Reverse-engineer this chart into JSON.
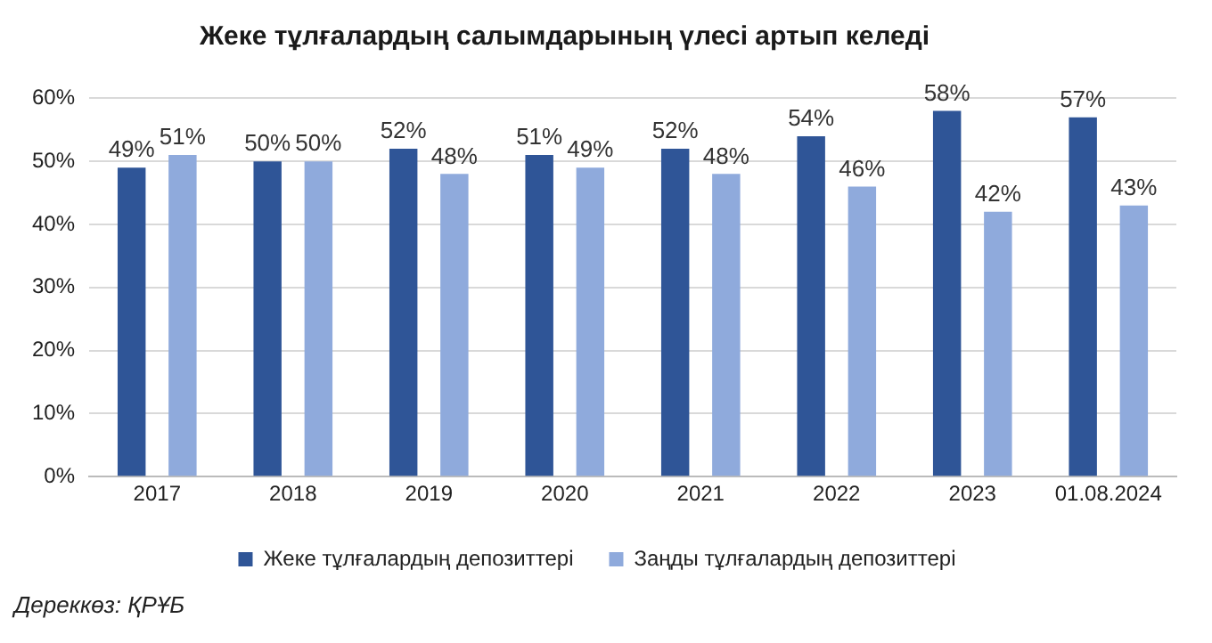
{
  "chart_data": {
    "type": "bar",
    "title": "Жеке тұлғалардың салымдарының үлесі артып келеді",
    "categories": [
      "2017",
      "2018",
      "2019",
      "2020",
      "2021",
      "2022",
      "2023",
      "01.08.2024"
    ],
    "series": [
      {
        "name": "Жеке тұлғалардың депозиттері",
        "color": "#2f5597",
        "values": [
          49,
          50,
          52,
          51,
          52,
          54,
          58,
          57
        ],
        "value_labels": [
          "49%",
          "50%",
          "52%",
          "51%",
          "52%",
          "54%",
          "58%",
          "57%"
        ]
      },
      {
        "name": "Заңды тұлғалардың депозиттері",
        "color": "#8faadc",
        "values": [
          51,
          50,
          48,
          49,
          48,
          46,
          42,
          43
        ],
        "value_labels": [
          "51%",
          "50%",
          "48%",
          "49%",
          "48%",
          "46%",
          "42%",
          "43%"
        ]
      }
    ],
    "ylim": [
      0,
      60
    ],
    "yticks": [
      {
        "value": 0,
        "label": "0%"
      },
      {
        "value": 10,
        "label": "10%"
      },
      {
        "value": 20,
        "label": "20%"
      },
      {
        "value": 30,
        "label": "30%"
      },
      {
        "value": 40,
        "label": "40%"
      },
      {
        "value": 50,
        "label": "50%"
      },
      {
        "value": 60,
        "label": "60%"
      }
    ],
    "grid": "y",
    "legend": "bottom",
    "annotations": [
      "Дереккөз: ҚРҰБ"
    ]
  }
}
